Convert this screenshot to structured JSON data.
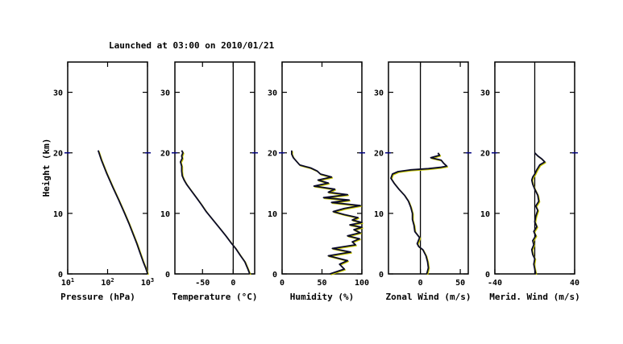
{
  "title": "Launched at 03:00 on 2010/01/21",
  "colors": {
    "frame": "#000000",
    "grid_dashes": "#000080",
    "profile": "#0a0a28",
    "profile_shadow": "#c8c800"
  },
  "chart_data": [
    {
      "type": "line",
      "xlabel": "Pressure (hPa)",
      "ylabel": "Height (km)",
      "xscale": "log",
      "xlim": [
        10,
        1000
      ],
      "ylim": [
        0,
        35
      ],
      "xticks": [
        {
          "v": 10,
          "label": "10",
          "exp": "1"
        },
        {
          "v": 100,
          "label": "10",
          "exp": "2"
        },
        {
          "v": 1000,
          "label": "10",
          "exp": "3"
        }
      ],
      "yticks": [
        0,
        10,
        20,
        30
      ],
      "zero_line": null,
      "series": [
        {
          "x": [
            1010,
            900,
            780,
            650,
            540,
            440,
            350,
            260,
            190,
            135,
            95,
            70,
            58
          ],
          "y": [
            0,
            1,
            2,
            3.5,
            5,
            6.5,
            8.2,
            10.2,
            12.2,
            14.3,
            16.6,
            18.8,
            20.4
          ]
        }
      ]
    },
    {
      "type": "line",
      "xlabel": "Temperature (°C)",
      "ylabel": "",
      "xscale": "linear",
      "xlim": [
        -95,
        35
      ],
      "ylim": [
        0,
        35
      ],
      "xticks": [
        {
          "v": -50,
          "label": "-50"
        },
        {
          "v": 0,
          "label": "0"
        }
      ],
      "yticks": [
        0,
        10,
        20,
        30
      ],
      "zero_line": 0,
      "series": [
        {
          "x": [
            27,
            24,
            19,
            12,
            4,
            -4,
            -12,
            -20,
            -28,
            -36,
            -44,
            -52,
            -60,
            -68,
            -76,
            -80,
            -83,
            -84,
            -84,
            -86,
            -83,
            -84,
            -82,
            -84
          ],
          "y": [
            0,
            0.8,
            2,
            3,
            4.2,
            5.2,
            6.3,
            7.3,
            8.3,
            9.3,
            10.3,
            11.5,
            12.6,
            13.7,
            14.8,
            15.5,
            16.2,
            17,
            17.8,
            18.5,
            19.1,
            19.5,
            20,
            20.4
          ]
        }
      ]
    },
    {
      "type": "line",
      "xlabel": "Humidity (%)",
      "ylabel": "",
      "xscale": "linear",
      "xlim": [
        0,
        100
      ],
      "ylim": [
        0,
        35
      ],
      "xticks": [
        {
          "v": 0,
          "label": "0"
        },
        {
          "v": 50,
          "label": "50"
        },
        {
          "v": 100,
          "label": "100"
        }
      ],
      "yticks": [
        0,
        10,
        20,
        30
      ],
      "zero_line": null,
      "series": [
        {
          "x": [
            60,
            78,
            72,
            82,
            58,
            86,
            63,
            92,
            88,
            97,
            82,
            98,
            90,
            100,
            85,
            100,
            88,
            95,
            78,
            64,
            78,
            98,
            62,
            84,
            52,
            82,
            58,
            66,
            40,
            58,
            45,
            62,
            48,
            44,
            36,
            22,
            18,
            14,
            12,
            12
          ],
          "y": [
            0,
            0.8,
            1.6,
            2.2,
            3,
            3.6,
            4.2,
            4.8,
            5.3,
            5.8,
            6.3,
            6.8,
            7.3,
            7.7,
            8.1,
            8.5,
            8.9,
            9.3,
            9.8,
            10.3,
            10.8,
            11.3,
            11.8,
            12.2,
            12.6,
            13.1,
            13.5,
            14,
            14.5,
            15,
            15.5,
            16,
            16.5,
            17,
            17.5,
            18,
            18.6,
            19.2,
            19.8,
            20.4
          ]
        }
      ]
    },
    {
      "type": "line",
      "xlabel": "Zonal Wind (m/s)",
      "ylabel": "",
      "xscale": "linear",
      "xlim": [
        -40,
        60
      ],
      "ylim": [
        0,
        35
      ],
      "xticks": [
        {
          "v": 0,
          "label": "0"
        },
        {
          "v": 50,
          "label": "50"
        }
      ],
      "yticks": [
        0,
        10,
        20,
        30
      ],
      "zero_line": 0,
      "series": [
        {
          "x": [
            8,
            10,
            9,
            7,
            3,
            -2,
            -4,
            -1,
            -7,
            -8,
            -10,
            -10,
            -12,
            -15,
            -20,
            -27,
            -33,
            -37,
            -35,
            -28,
            -12,
            10,
            25,
            33,
            29,
            26,
            13,
            24,
            22
          ],
          "y": [
            0,
            1,
            2,
            3,
            4,
            4.5,
            5,
            6,
            7,
            8,
            9,
            10,
            11,
            12,
            13,
            14,
            15,
            15.8,
            16.5,
            16.9,
            17.2,
            17.4,
            17.6,
            17.8,
            18.3,
            18.8,
            19.2,
            19.6,
            20
          ]
        }
      ]
    },
    {
      "type": "line",
      "xlabel": "Merid. Wind (m/s)",
      "ylabel": "",
      "xscale": "linear",
      "xlim": [
        -40,
        40
      ],
      "ylim": [
        0,
        35
      ],
      "xticks": [
        {
          "v": -40,
          "label": "-40"
        },
        {
          "v": 40,
          "label": "40"
        }
      ],
      "yticks": [
        0,
        10,
        20,
        30
      ],
      "zero_line": 0,
      "series": [
        {
          "x": [
            1,
            0,
            -1,
            0,
            -2,
            -3,
            -1,
            -2,
            1,
            -1,
            2,
            0,
            1,
            3,
            1,
            4,
            3,
            0,
            -2,
            -3,
            -2,
            0,
            2,
            5,
            10,
            7,
            3,
            0
          ],
          "y": [
            0,
            0.8,
            1.6,
            2.5,
            3.2,
            4,
            4.8,
            5.5,
            6.3,
            7,
            7.8,
            8.6,
            9.5,
            10.5,
            11.2,
            12,
            13,
            14,
            14.8,
            15.5,
            16,
            16.5,
            17.2,
            18,
            18.5,
            19,
            19.5,
            20
          ]
        }
      ]
    }
  ]
}
